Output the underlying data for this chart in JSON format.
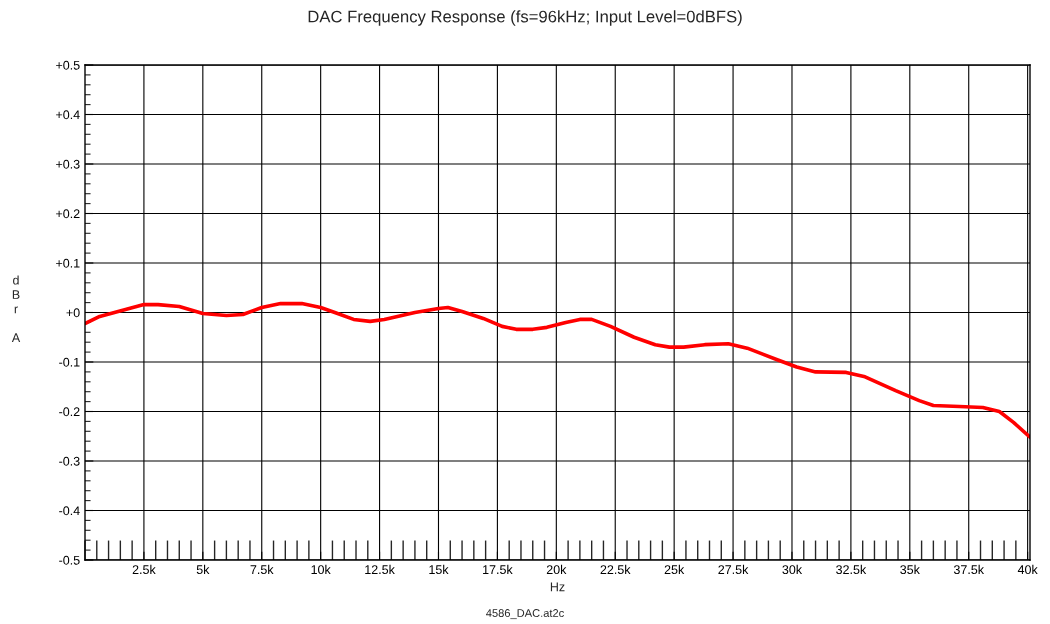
{
  "chart_data": {
    "type": "line",
    "title": "DAC Frequency Response (fs=96kHz; Input Level=0dBFS)",
    "xlabel": "Hz",
    "ylabel": "dBr A",
    "annotations": [
      "4586_DAC.at2c"
    ],
    "x": [
      20,
      625,
      2500,
      3100,
      4000,
      5000,
      6000,
      6700,
      7500,
      8300,
      9200,
      10000,
      10600,
      11400,
      12100,
      12700,
      14000,
      15000,
      15400,
      16000,
      16900,
      17700,
      18300,
      19000,
      19600,
      20400,
      21000,
      21500,
      22300,
      23300,
      24200,
      24800,
      25400,
      26300,
      27300,
      28100,
      29400,
      30200,
      31000,
      32300,
      33100,
      34400,
      35400,
      36000,
      37100,
      38100,
      38800,
      39400,
      40100
    ],
    "series": [
      {
        "color": "#ff0000",
        "values": [
          -0.022,
          -0.008,
          0.016,
          0.016,
          0.012,
          -0.002,
          -0.006,
          -0.004,
          0.01,
          0.018,
          0.018,
          0.01,
          0.0,
          -0.014,
          -0.018,
          -0.014,
          0.0,
          0.008,
          0.01,
          0.002,
          -0.012,
          -0.028,
          -0.034,
          -0.034,
          -0.03,
          -0.02,
          -0.014,
          -0.014,
          -0.028,
          -0.05,
          -0.065,
          -0.07,
          -0.07,
          -0.065,
          -0.063,
          -0.072,
          -0.096,
          -0.11,
          -0.12,
          -0.121,
          -0.13,
          -0.158,
          -0.178,
          -0.188,
          -0.19,
          -0.192,
          -0.2,
          -0.222,
          -0.252
        ]
      }
    ],
    "xlim": [
      0,
      40100
    ],
    "ylim": [
      -0.5,
      0.5
    ],
    "xticks": [
      {
        "value": 2500,
        "label": "2.5k"
      },
      {
        "value": 5000,
        "label": "5k"
      },
      {
        "value": 7500,
        "label": "7.5k"
      },
      {
        "value": 10000,
        "label": "10k"
      },
      {
        "value": 12500,
        "label": "12.5k"
      },
      {
        "value": 15000,
        "label": "15k"
      },
      {
        "value": 17500,
        "label": "17.5k"
      },
      {
        "value": 20000,
        "label": "20k"
      },
      {
        "value": 22500,
        "label": "22.5k"
      },
      {
        "value": 25000,
        "label": "25k"
      },
      {
        "value": 27500,
        "label": "27.5k"
      },
      {
        "value": 30000,
        "label": "30k"
      },
      {
        "value": 32500,
        "label": "32.5k"
      },
      {
        "value": 35000,
        "label": "35k"
      },
      {
        "value": 37500,
        "label": "37.5k"
      },
      {
        "value": 40000,
        "label": "40k"
      }
    ],
    "yticks": [
      {
        "value": -0.5,
        "label": "-0.5"
      },
      {
        "value": -0.4,
        "label": "-0.4"
      },
      {
        "value": -0.3,
        "label": "-0.3"
      },
      {
        "value": -0.2,
        "label": "-0.2"
      },
      {
        "value": -0.1,
        "label": "-0.1"
      },
      {
        "value": 0,
        "label": "+0"
      },
      {
        "value": 0.1,
        "label": "+0.1"
      },
      {
        "value": 0.2,
        "label": "+0.2"
      },
      {
        "value": 0.3,
        "label": "+0.3"
      },
      {
        "value": 0.4,
        "label": "+0.4"
      },
      {
        "value": 0.5,
        "label": "+0.5"
      }
    ],
    "grid": true,
    "legend": false,
    "marker": "none",
    "line_style": "solid"
  }
}
